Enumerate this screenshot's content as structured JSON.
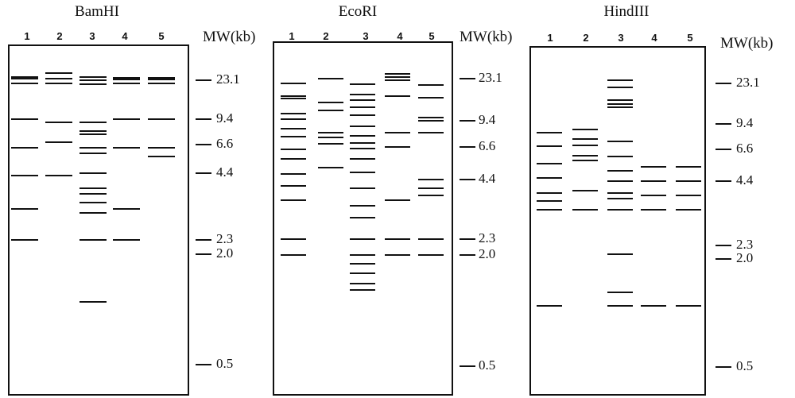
{
  "gels": [
    {
      "enzyme": "BamHI",
      "mw_title": "MW(kb)",
      "lane_labels": [
        "1",
        "2",
        "3",
        "4",
        "5"
      ],
      "markers": [
        {
          "label": "23.1",
          "kb": 23.1
        },
        {
          "label": "9.4",
          "kb": 9.4
        },
        {
          "label": "6.6",
          "kb": 6.6
        },
        {
          "label": "4.4",
          "kb": 4.4
        },
        {
          "label": "2.3",
          "kb": 2.3
        },
        {
          "label": "2.0",
          "kb": 2.0
        },
        {
          "label": "0.5",
          "kb": 0.5
        }
      ],
      "lanes": [
        [
          25.0,
          24.0,
          21.5,
          9.4,
          6.3,
          4.3,
          3.1,
          2.3
        ],
        [
          27.0,
          23.8,
          21.5,
          9.0,
          6.8,
          4.3
        ],
        [
          24.8,
          23.1,
          21.0,
          9.0,
          8.0,
          7.6,
          6.3,
          5.8,
          4.4,
          3.8,
          3.6,
          3.3,
          3.0,
          2.3,
          1.1
        ],
        [
          24.5,
          23.5,
          21.5,
          9.4,
          6.3,
          3.1,
          2.3
        ],
        [
          24.5,
          23.5,
          21.5,
          9.4,
          6.3,
          5.6
        ]
      ]
    },
    {
      "enzyme": "EcoRI",
      "mw_title": "MW(kb)",
      "lane_labels": [
        "1",
        "2",
        "3",
        "4",
        "5"
      ],
      "markers": [
        {
          "label": "23.1",
          "kb": 23.1
        },
        {
          "label": "9.4",
          "kb": 9.4
        },
        {
          "label": "6.6",
          "kb": 6.6
        },
        {
          "label": "4.4",
          "kb": 4.4
        },
        {
          "label": "2.3",
          "kb": 2.3
        },
        {
          "label": "2.0",
          "kb": 2.0
        },
        {
          "label": "0.5",
          "kb": 0.5
        }
      ],
      "lanes": [
        [
          21.0,
          16.0,
          15.0,
          11.0,
          9.8,
          8.4,
          7.6,
          6.4,
          5.7,
          4.7,
          4.1,
          3.5,
          2.3,
          2.0
        ],
        [
          23.0,
          14.0,
          11.8,
          8.0,
          7.5,
          6.9,
          5.1
        ],
        [
          20.5,
          16.5,
          14.5,
          12.5,
          10.5,
          8.7,
          7.7,
          7.0,
          6.5,
          5.7,
          4.8,
          4.0,
          3.3,
          2.9,
          2.3,
          2.0,
          1.8,
          1.6,
          1.4,
          1.3
        ],
        [
          25.5,
          23.8,
          22.5,
          16.0,
          8.0,
          6.6,
          3.5,
          2.3,
          2.0
        ],
        [
          20.0,
          15.5,
          10.0,
          9.4,
          8.0,
          4.4,
          4.0,
          3.7,
          2.3,
          2.0
        ]
      ]
    },
    {
      "enzyme": "HindIII",
      "mw_title": "MW(kb)",
      "lane_labels": [
        "1",
        "2",
        "3",
        "4",
        "5"
      ],
      "markers": [
        {
          "label": "23.1",
          "kb": 23.1
        },
        {
          "label": "9.4",
          "kb": 9.4
        },
        {
          "label": "6.6",
          "kb": 6.6
        },
        {
          "label": "4.4",
          "kb": 4.4
        },
        {
          "label": "2.3",
          "kb": 2.3
        },
        {
          "label": "2.0",
          "kb": 2.0
        },
        {
          "label": "0.5",
          "kb": 0.5
        }
      ],
      "lanes": [
        [
          8.3,
          6.9,
          5.5,
          4.6,
          3.9,
          3.6,
          3.3,
          1.1
        ],
        [
          8.7,
          7.6,
          7.0,
          6.1,
          5.7,
          4.0,
          3.3
        ],
        [
          25.0,
          21.0,
          16.0,
          14.5,
          13.5,
          7.4,
          6.0,
          5.0,
          4.4,
          3.9,
          3.7,
          3.3,
          2.1,
          1.3,
          1.1
        ],
        [
          5.3,
          4.4,
          3.8,
          3.3,
          1.1
        ],
        [
          5.3,
          4.4,
          3.8,
          3.3,
          1.1
        ]
      ]
    }
  ]
}
